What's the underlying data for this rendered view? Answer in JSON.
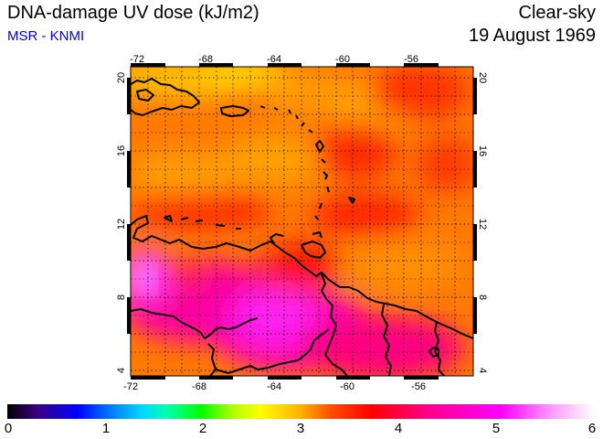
{
  "header": {
    "title": "DNA-damage UV dose (kJ/m2)",
    "credit": "MSR - KNMI",
    "sky_condition": "Clear-sky",
    "date": "19 August 1969"
  },
  "map": {
    "lon_ticks": [
      "-72",
      "-68",
      "-64",
      "-60",
      "-56"
    ],
    "lat_ticks": [
      "4",
      "8",
      "12",
      "16",
      "20"
    ],
    "lon_range": [
      -72,
      -52
    ],
    "lat_range": [
      3.5,
      20.5
    ],
    "grid": "dotted every 2 degrees"
  },
  "colorbar": {
    "labels": [
      "0",
      "1",
      "2",
      "3",
      "4",
      "5",
      "6"
    ],
    "range": [
      0,
      6
    ]
  }
}
